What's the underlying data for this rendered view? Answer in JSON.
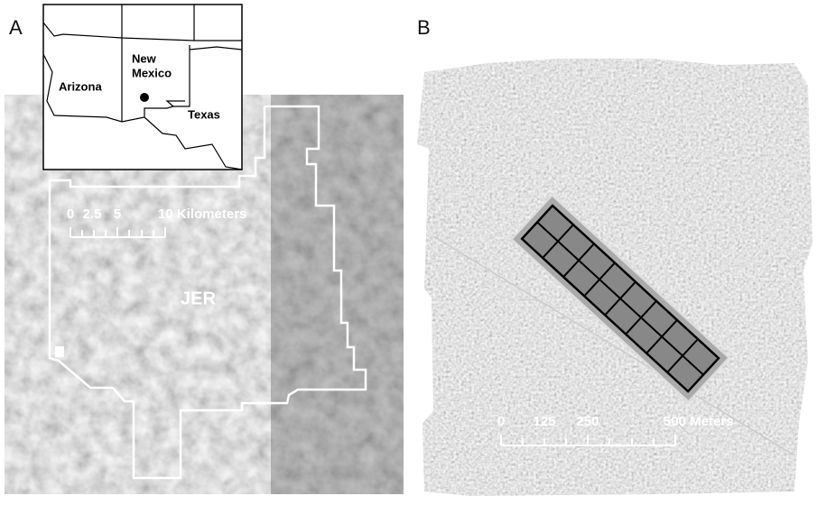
{
  "panels": [
    {
      "label": "A",
      "region_label": "JER",
      "inset": {
        "states": [
          "Arizona",
          "Texas"
        ],
        "new_mexico_lines": [
          "New",
          "Mexico"
        ]
      },
      "scale_bar": {
        "labels": [
          "0",
          "2.5",
          "5",
          "10 Kilometers"
        ]
      }
    },
    {
      "label": "B",
      "scale_bar": {
        "labels": [
          "0",
          "125",
          "250",
          "500 Meters"
        ]
      }
    }
  ]
}
